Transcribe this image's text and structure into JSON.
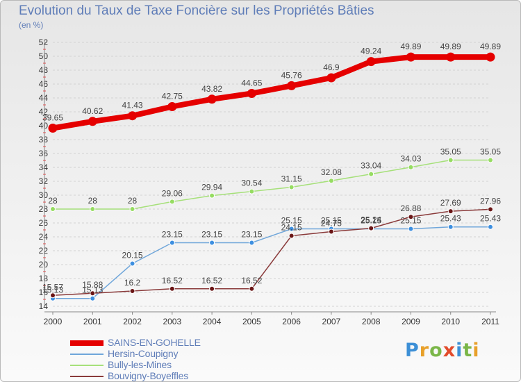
{
  "title": "Evolution du Taux de Taxe Foncière sur les Propriétés Bâties",
  "subtitle": "(en %)",
  "logo": {
    "text": "Proxiti",
    "letters": [
      {
        "ch": "P",
        "color": "#3c8fd6"
      },
      {
        "ch": "r",
        "color": "#e8a02a"
      },
      {
        "ch": "o",
        "color": "#7ab648"
      },
      {
        "ch": "x",
        "color": "#e24b2b"
      },
      {
        "ch": "i",
        "color": "#3c8fd6"
      },
      {
        "ch": "t",
        "color": "#7ab648"
      },
      {
        "ch": "i",
        "color": "#e8a02a"
      }
    ]
  },
  "chart_data": {
    "type": "line",
    "x": [
      "2000",
      "2001",
      "2002",
      "2003",
      "2004",
      "2005",
      "2006",
      "2007",
      "2008",
      "2009",
      "2010",
      "2011"
    ],
    "ylim": [
      14,
      52
    ],
    "yticks": [
      14,
      16,
      18,
      20,
      22,
      24,
      26,
      28,
      30,
      32,
      34,
      36,
      38,
      40,
      42,
      44,
      46,
      48,
      50,
      52
    ],
    "grid": "horizontal",
    "legend_position": "bottom-left",
    "series": [
      {
        "name": "SAINS-EN-GOHELLE",
        "color": "#e50000",
        "line_width": 8,
        "marker_color": "#e50000",
        "values": [
          39.65,
          40.62,
          41.43,
          42.75,
          43.82,
          44.65,
          45.76,
          46.9,
          49.24,
          49.89,
          49.89,
          49.89
        ],
        "labels": [
          "39.65",
          "40.62",
          "41.43",
          "42.75",
          "43.82",
          "44.65",
          "45.76",
          "46.9",
          "49.24",
          "49.89",
          "49.89",
          "49.89"
        ]
      },
      {
        "name": "Hersin-Coupigny",
        "color": "#6fa6da",
        "line_width": 1.5,
        "marker_color": "#3d8fe0",
        "values": [
          15.13,
          15.13,
          20.15,
          23.15,
          23.15,
          23.15,
          25.15,
          25.15,
          25.15,
          25.15,
          25.43,
          25.43
        ],
        "labels": [
          "15.13",
          "15.13",
          "20.15",
          "23.15",
          "23.15",
          "23.15",
          "25.15",
          "25.15",
          "25.15",
          "25.15",
          "25.43",
          "25.43"
        ]
      },
      {
        "name": "Bully-les-Mines",
        "color": "#a6e07a",
        "line_width": 1.5,
        "marker_color": "#96dc62",
        "values": [
          28,
          28,
          28,
          29.06,
          29.94,
          30.54,
          31.15,
          32.08,
          33.04,
          34.03,
          35.05,
          35.05
        ],
        "labels": [
          "28",
          "28",
          "28",
          "29.06",
          "29.94",
          "30.54",
          "31.15",
          "32.08",
          "33.04",
          "34.03",
          "35.05",
          "35.05"
        ]
      },
      {
        "name": "Bouvigny-Boyeffles",
        "color": "#8a3a3a",
        "line_width": 1.5,
        "marker_color": "#6a1616",
        "values": [
          15.57,
          15.88,
          16.2,
          16.52,
          16.52,
          16.52,
          24.15,
          24.75,
          25.24,
          26.88,
          27.69,
          27.96
        ],
        "labels": [
          "15.57",
          "15.88",
          "16.2",
          "16.52",
          "16.52",
          "16.52",
          "24.15",
          "24.75",
          "25.24",
          "26.88",
          "27.69",
          "27.96"
        ]
      }
    ]
  }
}
